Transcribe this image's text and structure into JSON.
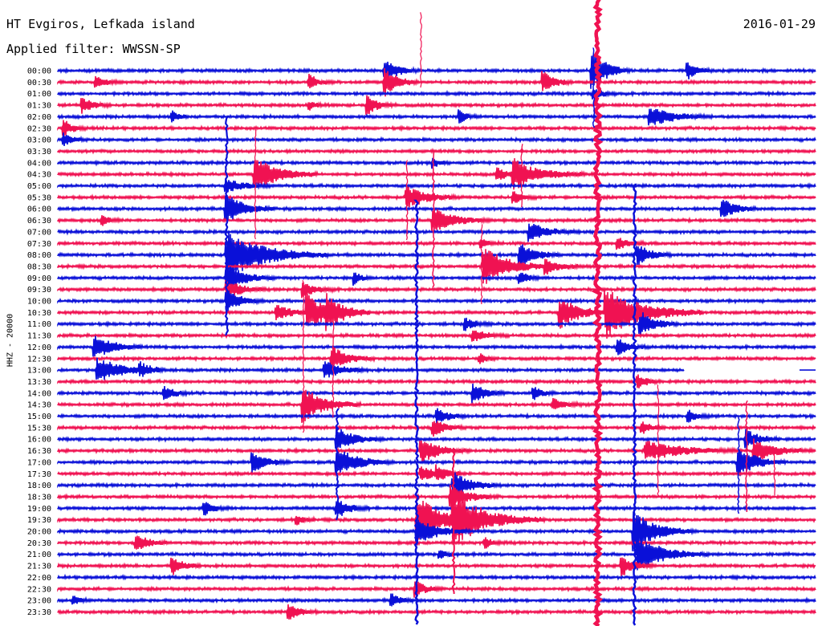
{
  "header": {
    "station": "HT Evgiros, Lefkada island",
    "filter": "Applied filter: WWSSN-SP",
    "date": "2016-01-29"
  },
  "axis": {
    "channel_label": "HHZ - 20000"
  },
  "colors": {
    "blue": "#0a10d8",
    "red": "#f01252"
  },
  "chart_data": {
    "type": "line",
    "title": "HT Evgiros, Lefkada island",
    "subtitle": "Applied filter: WWSSN-SP",
    "ylabel": "HHZ - 20000",
    "grid": false,
    "legend": "none",
    "trace_colors": [
      "blue",
      "red"
    ],
    "rows": [
      "00:00",
      "00:30",
      "01:00",
      "01:30",
      "02:00",
      "02:30",
      "03:00",
      "03:30",
      "04:00",
      "04:30",
      "05:00",
      "05:30",
      "06:00",
      "06:30",
      "07:00",
      "07:30",
      "08:00",
      "08:30",
      "09:00",
      "09:30",
      "10:00",
      "10:30",
      "11:00",
      "11:30",
      "12:00",
      "12:30",
      "13:00",
      "13:30",
      "14:00",
      "14:30",
      "15:00",
      "15:30",
      "16:00",
      "16:30",
      "17:00",
      "17:30",
      "18:00",
      "18:30",
      "19:00",
      "19:30",
      "20:00",
      "20:30",
      "21:00",
      "21:30",
      "22:00",
      "22:30",
      "23:00",
      "23:30"
    ]
  }
}
